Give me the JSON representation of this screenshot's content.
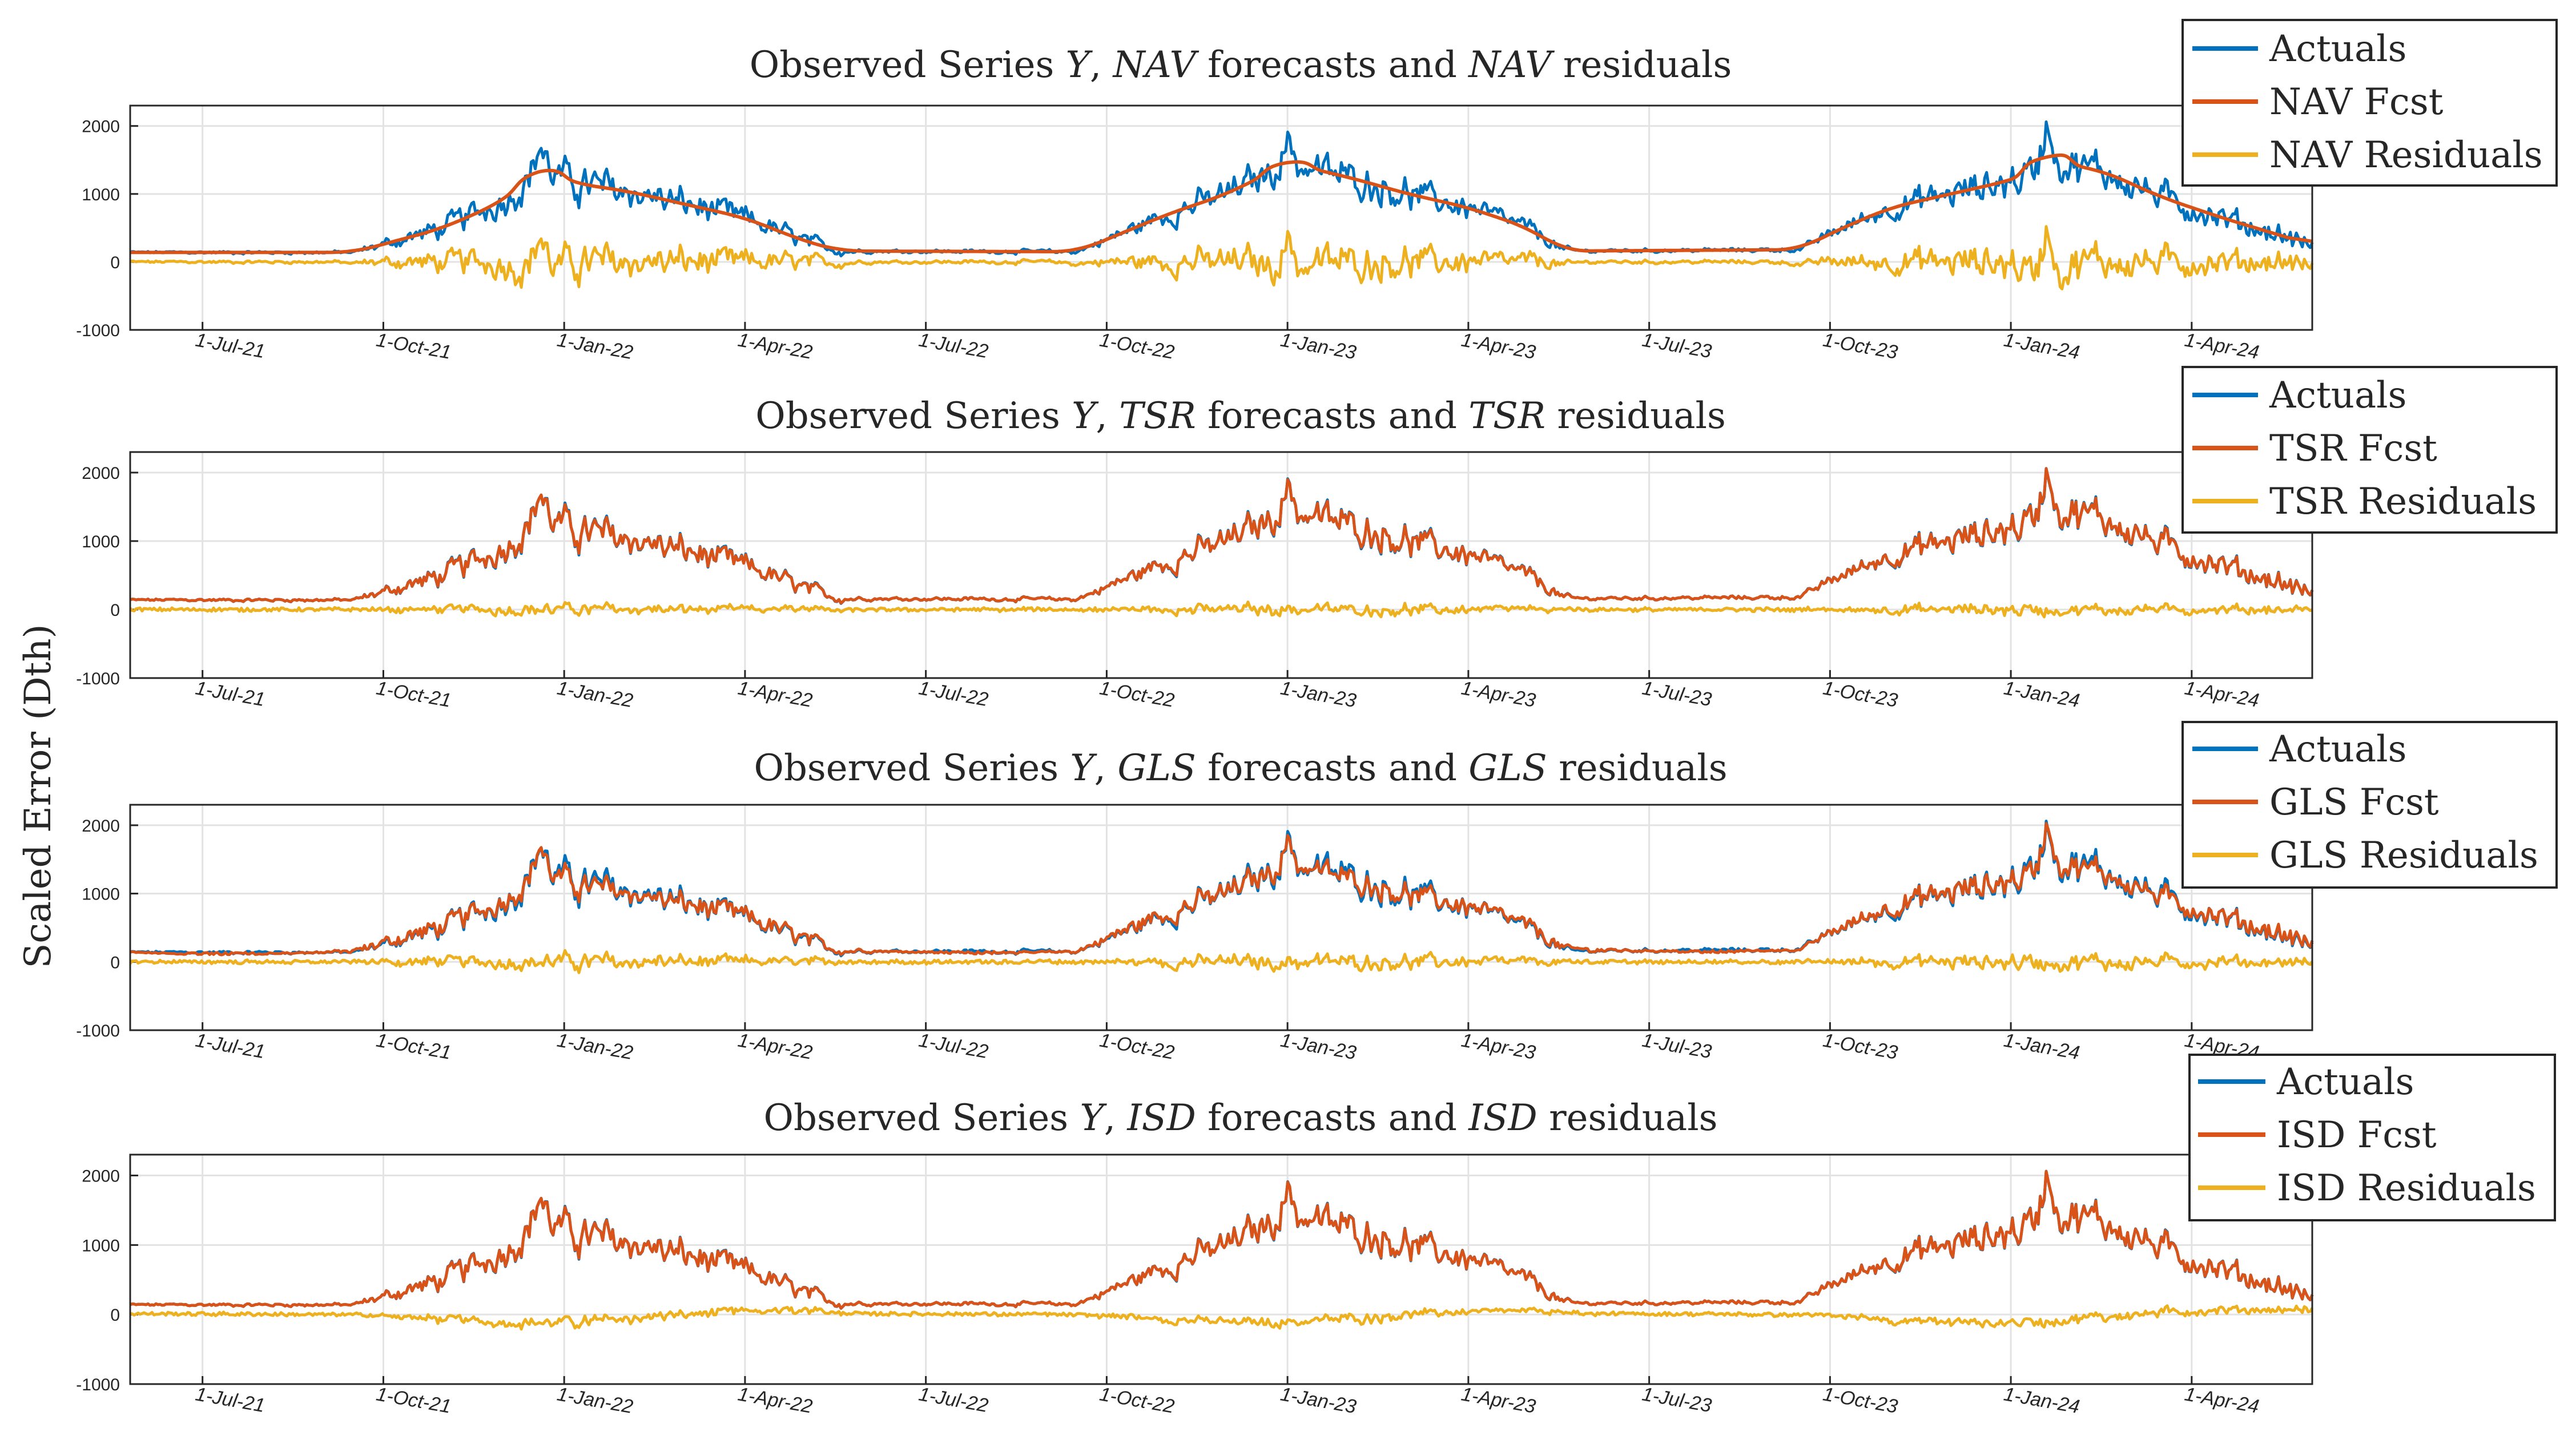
{
  "figure": {
    "ylabel": "Scaled Error (Dth)"
  },
  "colors": {
    "actuals": "#0072BD",
    "forecast": "#D95319",
    "residuals": "#EDB120",
    "grid": "#e3e3e3",
    "axis": "#262626"
  },
  "chart_data": [
    {
      "type": "line",
      "model": "NAV",
      "title": {
        "prefix": "Observed Series ",
        "y": "Y",
        "comma": ", ",
        "model": "NAV",
        "middle": " forecasts and ",
        "model2": "NAV",
        "suffix": " residuals"
      },
      "legend": [
        "Actuals",
        "NAV Fcst",
        "NAV Residuals"
      ],
      "series_names": [
        "Actuals",
        "NAV Fcst",
        "NAV Residuals"
      ],
      "ylim": [
        -1000,
        2300
      ],
      "yticks": [
        -1000,
        0,
        1000,
        2000
      ],
      "ytick_labels": [
        "-1000",
        "0",
        "1000",
        "2000"
      ],
      "xtick_labels": [
        "1-Jul-21",
        "1-Oct-21",
        "1-Jan-22",
        "1-Apr-22",
        "1-Jul-22",
        "1-Oct-22",
        "1-Jan-23",
        "1-Apr-23",
        "1-Jul-23",
        "1-Oct-23",
        "1-Jan-24",
        "1-Apr-24"
      ],
      "grid": true,
      "legend_location": "top-right outside"
    },
    {
      "type": "line",
      "model": "TSR",
      "title": {
        "prefix": "Observed Series ",
        "y": "Y",
        "comma": ", ",
        "model": "TSR",
        "middle": " forecasts and ",
        "model2": "TSR",
        "suffix": " residuals"
      },
      "legend": [
        "Actuals",
        "TSR Fcst",
        "TSR Residuals"
      ],
      "series_names": [
        "Actuals",
        "TSR Fcst",
        "TSR Residuals"
      ],
      "ylim": [
        -1000,
        2300
      ],
      "yticks": [
        -1000,
        0,
        1000,
        2000
      ],
      "ytick_labels": [
        "-1000",
        "0",
        "1000",
        "2000"
      ],
      "xtick_labels": [
        "1-Jul-21",
        "1-Oct-21",
        "1-Jan-22",
        "1-Apr-22",
        "1-Jul-22",
        "1-Oct-22",
        "1-Jan-23",
        "1-Apr-23",
        "1-Jul-23",
        "1-Oct-23",
        "1-Jan-24",
        "1-Apr-24"
      ],
      "grid": true,
      "legend_location": "top-right outside"
    },
    {
      "type": "line",
      "model": "GLS",
      "title": {
        "prefix": "Observed Series ",
        "y": "Y",
        "comma": ", ",
        "model": "GLS",
        "middle": " forecasts and ",
        "model2": "GLS",
        "suffix": " residuals"
      },
      "legend": [
        "Actuals",
        "GLS Fcst",
        "GLS Residuals"
      ],
      "series_names": [
        "Actuals",
        "GLS Fcst",
        "GLS Residuals"
      ],
      "ylim": [
        -1000,
        2300
      ],
      "yticks": [
        -1000,
        0,
        1000,
        2000
      ],
      "ytick_labels": [
        "-1000",
        "0",
        "1000",
        "2000"
      ],
      "xtick_labels": [
        "1-Jul-21",
        "1-Oct-21",
        "1-Jan-22",
        "1-Apr-22",
        "1-Jul-22",
        "1-Oct-22",
        "1-Jan-23",
        "1-Apr-23",
        "1-Jul-23",
        "1-Oct-23",
        "1-Jan-24",
        "1-Apr-24"
      ],
      "grid": true,
      "legend_location": "top-right outside"
    },
    {
      "type": "line",
      "model": "ISD",
      "title": {
        "prefix": "Observed Series ",
        "y": "Y",
        "comma": ", ",
        "model": "ISD",
        "middle": " forecasts and ",
        "model2": "ISD",
        "suffix": " residuals"
      },
      "legend": [
        "Actuals",
        "ISD Fcst",
        "ISD Residuals"
      ],
      "series_names": [
        "Actuals",
        "ISD Fcst",
        "ISD Residuals"
      ],
      "ylim": [
        -1000,
        2300
      ],
      "yticks": [
        -1000,
        0,
        1000,
        2000
      ],
      "ytick_labels": [
        "-1000",
        "0",
        "1000",
        "2000"
      ],
      "xtick_labels": [
        "1-Jul-21",
        "1-Oct-21",
        "1-Jan-22",
        "1-Apr-22",
        "1-Jul-22",
        "1-Oct-22",
        "1-Jan-23",
        "1-Apr-23",
        "1-Jul-23",
        "1-Oct-23",
        "1-Jan-24",
        "1-Apr-24"
      ],
      "grid": true,
      "legend_location": "top-right outside"
    }
  ],
  "series_shape": {
    "x_unit": "months since 1-Jul-21",
    "x_range": [
      -1.2,
      35.0
    ],
    "actuals_envelope": [
      {
        "x": -1.2,
        "y": 140
      },
      {
        "x": 2.5,
        "y": 140
      },
      {
        "x": 3.0,
        "y": 260
      },
      {
        "x": 4.0,
        "y": 500
      },
      {
        "x": 5.0,
        "y": 900
      },
      {
        "x": 5.6,
        "y": 1350
      },
      {
        "x": 6.2,
        "y": 1150
      },
      {
        "x": 7.0,
        "y": 1050
      },
      {
        "x": 8.0,
        "y": 850
      },
      {
        "x": 9.0,
        "y": 650
      },
      {
        "x": 10.0,
        "y": 300
      },
      {
        "x": 10.6,
        "y": 160
      },
      {
        "x": 14.5,
        "y": 150
      },
      {
        "x": 15.0,
        "y": 330
      },
      {
        "x": 16.0,
        "y": 700
      },
      {
        "x": 17.0,
        "y": 1000
      },
      {
        "x": 18.0,
        "y": 1450
      },
      {
        "x": 19.0,
        "y": 1250
      },
      {
        "x": 20.0,
        "y": 1000
      },
      {
        "x": 21.0,
        "y": 800
      },
      {
        "x": 22.0,
        "y": 500
      },
      {
        "x": 22.6,
        "y": 160
      },
      {
        "x": 26.5,
        "y": 180
      },
      {
        "x": 27.0,
        "y": 420
      },
      {
        "x": 28.0,
        "y": 800
      },
      {
        "x": 29.0,
        "y": 1000
      },
      {
        "x": 30.0,
        "y": 1200
      },
      {
        "x": 30.8,
        "y": 1450
      },
      {
        "x": 31.5,
        "y": 1350
      },
      {
        "x": 32.5,
        "y": 950
      },
      {
        "x": 33.5,
        "y": 650
      },
      {
        "x": 35.0,
        "y": 250
      }
    ],
    "volatility": [
      {
        "x": -1.2,
        "v": 20
      },
      {
        "x": 2.5,
        "v": 25
      },
      {
        "x": 4.0,
        "v": 170
      },
      {
        "x": 6.0,
        "v": 280
      },
      {
        "x": 8.0,
        "v": 220
      },
      {
        "x": 10.0,
        "v": 120
      },
      {
        "x": 11.0,
        "v": 25
      },
      {
        "x": 14.5,
        "v": 30
      },
      {
        "x": 16.0,
        "v": 170
      },
      {
        "x": 18.0,
        "v": 260
      },
      {
        "x": 20.0,
        "v": 220
      },
      {
        "x": 22.0,
        "v": 120
      },
      {
        "x": 23.0,
        "v": 25
      },
      {
        "x": 26.5,
        "v": 30
      },
      {
        "x": 28.0,
        "v": 170
      },
      {
        "x": 30.5,
        "v": 300
      },
      {
        "x": 33.0,
        "v": 200
      },
      {
        "x": 35.0,
        "v": 140
      }
    ],
    "spikes": [
      {
        "x": 5.6,
        "dy": 350
      },
      {
        "x": 18.0,
        "dy": 300
      },
      {
        "x": 30.6,
        "dy": 650
      }
    ],
    "forecast_fidelity": {
      "NAV": 0.0,
      "TSR": 0.93,
      "GLS": 0.82,
      "ISD": 0.96
    },
    "residual_scale": {
      "NAV": 1.0,
      "TSR": 0.35,
      "GLS": 0.5,
      "ISD": 0.3
    },
    "residual_drift": {
      "NAV": 0,
      "TSR": 0,
      "GLS": 0,
      "ISD": 1
    }
  }
}
